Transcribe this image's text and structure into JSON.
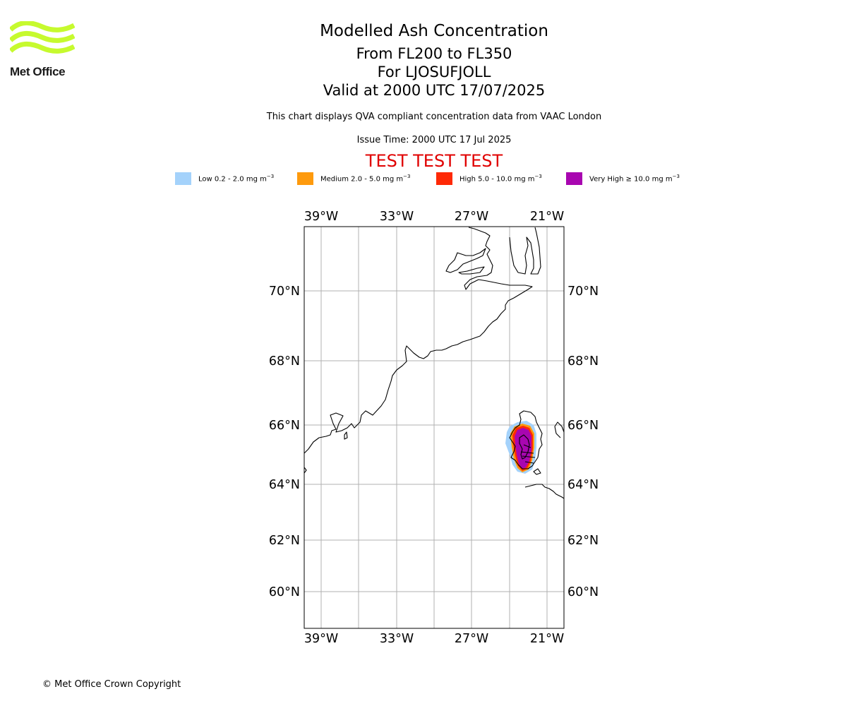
{
  "logo": {
    "text": "Met Office",
    "color": "#c6fa2e"
  },
  "header": {
    "title": "Modelled Ash Concentration",
    "subtitle_levels": "From FL200 to FL350",
    "subtitle_volcano": "For LJOSUFJOLL",
    "subtitle_valid": "Valid at 2000 UTC 17/07/2025",
    "note": "This chart displays QVA compliant concentration data from VAAC London",
    "issue_time": "Issue Time: 2000 UTC 17 Jul 2025",
    "test_banner": "TEST TEST TEST"
  },
  "legend": [
    {
      "label": "Low 0.2 - 2.0 mg m",
      "unit_exp": "−3",
      "color": "#a4d2fb"
    },
    {
      "label": "Medium 2.0 - 5.0 mg m",
      "unit_exp": "−3",
      "color": "#fe9a0d"
    },
    {
      "label": "High 5.0 - 10.0 mg m",
      "unit_exp": "−3",
      "color": "#fe2906"
    },
    {
      "label": "Very High  ≥  10.0 mg m",
      "unit_exp": "−3",
      "color": "#a806b0"
    }
  ],
  "map": {
    "lon_ticks": [
      {
        "lon": -39,
        "label": "39°W"
      },
      {
        "lon": -33,
        "label": "33°W"
      },
      {
        "lon": -27,
        "label": "27°W"
      },
      {
        "lon": -21,
        "label": "21°W"
      }
    ],
    "lat_ticks": [
      {
        "lat": 70,
        "label": "70°N"
      },
      {
        "lat": 68,
        "label": "68°N"
      },
      {
        "lat": 66,
        "label": "66°N"
      },
      {
        "lat": 64,
        "label": "64°N"
      },
      {
        "lat": 62,
        "label": "62°N"
      },
      {
        "lat": 60,
        "label": "60°N"
      }
    ],
    "lon_range": [
      -40.3,
      -19.7
    ],
    "lat_range": [
      58.8,
      72.0
    ],
    "grid": true,
    "coastline_color": "#000000",
    "grid_color": "#b0b0b0"
  },
  "footer": {
    "copyright": "© Met Office Crown Copyright"
  }
}
